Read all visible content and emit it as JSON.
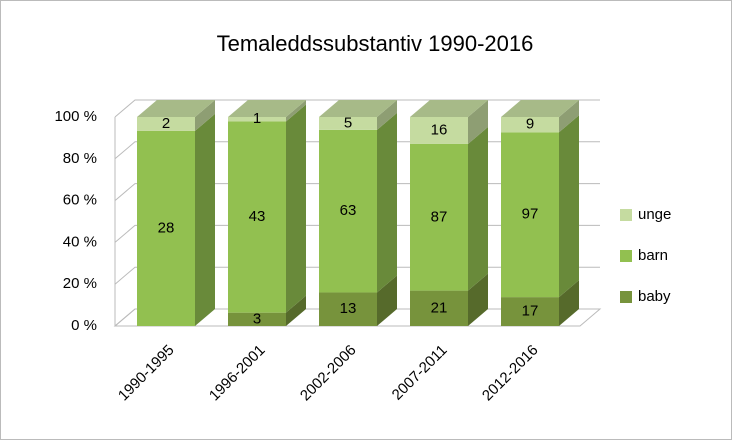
{
  "chart_data": {
    "type": "bar3d",
    "stacking": "percent",
    "title": "Temaleddssubstantiv 1990-2016",
    "categories": [
      "1990-1995",
      "1996-2001",
      "2002-2006",
      "2007-2011",
      "2012-2016"
    ],
    "series": [
      {
        "name": "baby",
        "color": "#77933c",
        "values": [
          null,
          3,
          13,
          21,
          17
        ]
      },
      {
        "name": "barn",
        "color": "#92c050",
        "values": [
          28,
          43,
          63,
          87,
          97
        ]
      },
      {
        "name": "unge",
        "color": "#c5dba0",
        "values": [
          2,
          1,
          5,
          16,
          9
        ]
      }
    ],
    "ylim": [
      0,
      100
    ],
    "yticks": [
      {
        "value": 0,
        "label": "0 %"
      },
      {
        "value": 20,
        "label": "20 %"
      },
      {
        "value": 40,
        "label": "40 %"
      },
      {
        "value": 60,
        "label": "60 %"
      },
      {
        "value": 80,
        "label": "80 %"
      },
      {
        "value": 100,
        "label": "100 %"
      }
    ],
    "grid": true,
    "legend": "right"
  }
}
